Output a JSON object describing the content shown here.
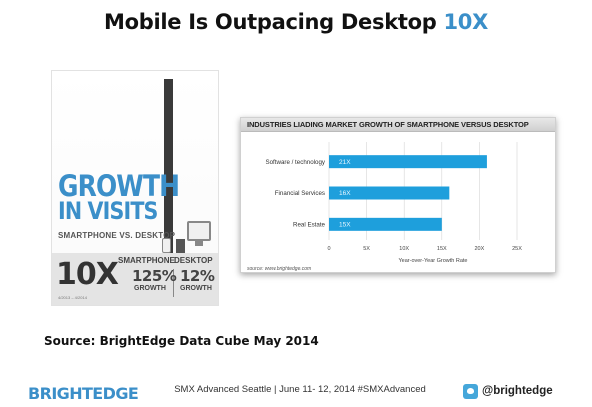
{
  "slide": {
    "title_main": "Mobile Is Outpacing Desktop",
    "title_accent": "10X",
    "source": "Source: BrightEdge Data Cube May 2014"
  },
  "infographic": {
    "headline_1": "GROWTH",
    "headline_2": "IN VISITS",
    "subhead": "SMARTPHONE VS. DESKTOP",
    "multiplier": "10X",
    "multiplier_note": "4/2013 – 4/2014",
    "smartphone_label": "SMARTPHONE",
    "desktop_label": "DESKTOP",
    "smartphone_growth": "125%",
    "desktop_growth": "12%",
    "growth_word": "GROWTH"
  },
  "chart_data": {
    "type": "bar",
    "orientation": "horizontal",
    "title": "INDUSTRIES LIADING MARKET GROWTH OF SMARTPHONE VERSUS DESKTOP",
    "categories": [
      "Software / technology",
      "Financial Services",
      "Real Estate"
    ],
    "values": [
      21,
      16,
      15
    ],
    "data_labels": [
      "21X",
      "16X",
      "15X"
    ],
    "xlabel": "Year-over-Year Growth Rate",
    "ylabel": "",
    "xlim": [
      0,
      25
    ],
    "x_ticks": [
      "0",
      "5X",
      "10X",
      "15X",
      "20X",
      "25X"
    ],
    "grid": true,
    "bar_color": "#1e9fdc",
    "source_note": "source: www.brightedge.com"
  },
  "footer": {
    "brand": "BRIGHTEDGE",
    "event_text": "SMX Advanced Seattle | June 11- 12, 2014 #SMXAdvanced",
    "twitter_handle": "@brightedge"
  },
  "icons": {
    "twitter": "twitter-bird-icon",
    "phone": "smartphone-icon",
    "monitor": "desktop-monitor-icon"
  }
}
